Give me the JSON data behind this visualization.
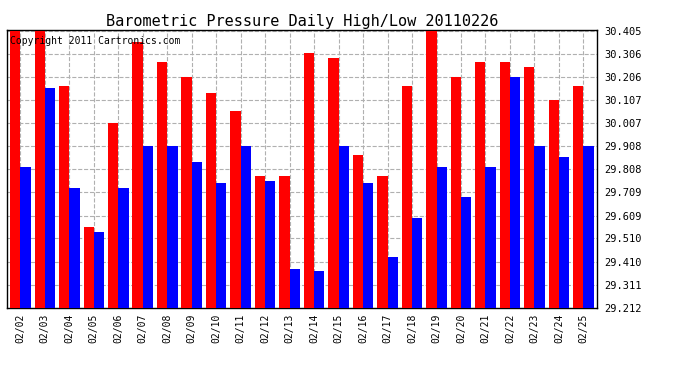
{
  "title": "Barometric Pressure Daily High/Low 20110226",
  "copyright": "Copyright 2011 Cartronics.com",
  "dates": [
    "02/02",
    "02/03",
    "02/04",
    "02/05",
    "02/06",
    "02/07",
    "02/08",
    "02/09",
    "02/10",
    "02/11",
    "02/12",
    "02/13",
    "02/14",
    "02/15",
    "02/16",
    "02/17",
    "02/18",
    "02/19",
    "02/20",
    "02/21",
    "02/22",
    "02/23",
    "02/24",
    "02/25"
  ],
  "highs": [
    30.405,
    30.405,
    30.17,
    29.56,
    30.007,
    30.36,
    30.27,
    30.206,
    30.14,
    30.06,
    29.78,
    29.78,
    30.31,
    30.29,
    29.87,
    29.78,
    30.17,
    30.405,
    30.206,
    30.27,
    30.27,
    30.25,
    30.107,
    30.17
  ],
  "lows": [
    29.82,
    30.16,
    29.73,
    29.54,
    29.73,
    29.908,
    29.908,
    29.84,
    29.75,
    29.908,
    29.76,
    29.38,
    29.37,
    29.908,
    29.75,
    29.43,
    29.6,
    29.82,
    29.69,
    29.82,
    30.206,
    29.908,
    29.86,
    29.908
  ],
  "high_color": "#ff0000",
  "low_color": "#0000ff",
  "bg_color": "#ffffff",
  "grid_color": "#b0b0b0",
  "ymin": 29.212,
  "ymax": 30.405,
  "yticks": [
    29.212,
    29.311,
    29.41,
    29.51,
    29.609,
    29.709,
    29.808,
    29.908,
    30.007,
    30.107,
    30.206,
    30.306,
    30.405
  ],
  "title_fontsize": 11,
  "copyright_fontsize": 7
}
